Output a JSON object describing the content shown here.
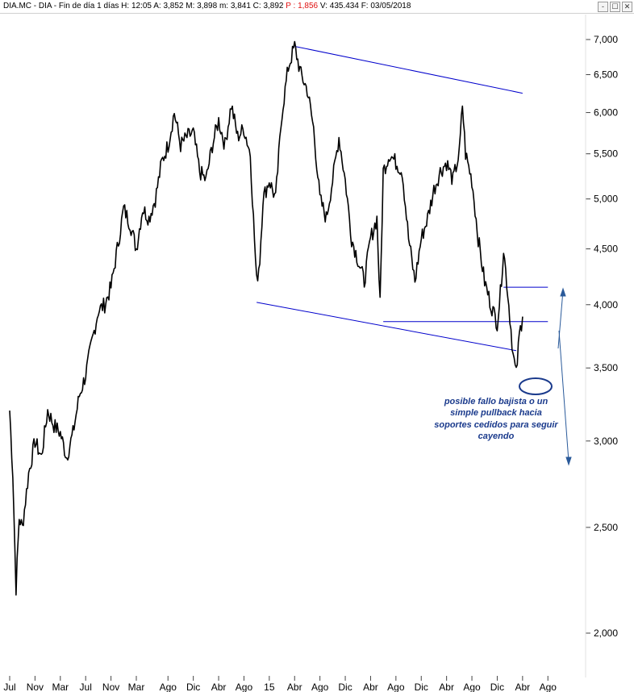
{
  "header": {
    "title_prefix": "DIA.MC - DIA - Fin de día 1 días",
    "h": "H: 12:05",
    "a": "A: 3,852",
    "m": "M: 3,898",
    "mm": "m: 3,841",
    "c": "C: 3,892",
    "p": "P : 1,856",
    "v": "V: 435.434",
    "f": "F: 03/05/2018",
    "controls": [
      "-",
      "☐",
      "✕"
    ]
  },
  "colors": {
    "price": "#000000",
    "trendline": "#0000cc",
    "annotation": "#1a3a8c",
    "arrow": "#2a5a9a",
    "highlight": "#e01010"
  },
  "chart_data": {
    "type": "line",
    "title": "",
    "scale": "log",
    "ylim": [
      1.9,
      7.3
    ],
    "y_ticks": [
      "7,000",
      "6,500",
      "6,000",
      "5,500",
      "5,000",
      "4,500",
      "4,000",
      "3,500",
      "3,000",
      "2,500",
      "2,000"
    ],
    "x_ticks": [
      "Jul",
      "Nov",
      "Mar",
      "Jul",
      "Nov",
      "Mar",
      "Ago",
      "Dic",
      "Abr",
      "Ago",
      "15",
      "Abr",
      "Ago",
      "Dic",
      "Abr",
      "Ago",
      "Dic",
      "Abr",
      "Ago",
      "Dic",
      "Abr",
      "Ago"
    ],
    "x_tick_index": [
      0,
      4,
      8,
      12,
      16,
      20,
      25,
      29,
      33,
      37,
      41,
      45,
      49,
      53,
      57,
      61,
      65,
      69,
      73,
      77,
      81,
      85
    ],
    "series": [
      {
        "values": [
          [
            0,
            3.2
          ],
          [
            0.5,
            2.8
          ],
          [
            1,
            2.2
          ],
          [
            1.5,
            2.55
          ],
          [
            2,
            2.5
          ],
          [
            3,
            2.8
          ],
          [
            4,
            3.0
          ],
          [
            5,
            2.9
          ],
          [
            6,
            3.2
          ],
          [
            7,
            3.1
          ],
          [
            8,
            3.05
          ],
          [
            9,
            2.9
          ],
          [
            10,
            3.05
          ],
          [
            11,
            3.3
          ],
          [
            12,
            3.45
          ],
          [
            13,
            3.7
          ],
          [
            14,
            3.95
          ],
          [
            15,
            4.0
          ],
          [
            16,
            4.15
          ],
          [
            17,
            4.5
          ],
          [
            18,
            4.9
          ],
          [
            19,
            4.75
          ],
          [
            20,
            4.5
          ],
          [
            21,
            4.9
          ],
          [
            22,
            4.8
          ],
          [
            23,
            5.0
          ],
          [
            24,
            5.4
          ],
          [
            25,
            5.6
          ],
          [
            26,
            6.0
          ],
          [
            27,
            5.6
          ],
          [
            28,
            5.7
          ],
          [
            29,
            5.75
          ],
          [
            30,
            5.3
          ],
          [
            31,
            5.2
          ],
          [
            32,
            5.6
          ],
          [
            33,
            5.9
          ],
          [
            34,
            5.6
          ],
          [
            35,
            6.1
          ],
          [
            36,
            5.7
          ],
          [
            37,
            5.8
          ],
          [
            38,
            5.5
          ],
          [
            38.5,
            4.8
          ],
          [
            39,
            4.2
          ],
          [
            39.5,
            4.4
          ],
          [
            40,
            5.0
          ],
          [
            41,
            5.2
          ],
          [
            42,
            5.0
          ],
          [
            43,
            6.0
          ],
          [
            44,
            6.6
          ],
          [
            45,
            6.9
          ],
          [
            46,
            6.5
          ],
          [
            47,
            6.3
          ],
          [
            48,
            5.8
          ],
          [
            49,
            5.0
          ],
          [
            50,
            4.8
          ],
          [
            51,
            5.2
          ],
          [
            52,
            5.7
          ],
          [
            53,
            5.2
          ],
          [
            54,
            4.6
          ],
          [
            55,
            4.4
          ],
          [
            56,
            4.2
          ],
          [
            57,
            4.6
          ],
          [
            58,
            4.8
          ],
          [
            58.5,
            4.0
          ],
          [
            59,
            5.3
          ],
          [
            60,
            5.5
          ],
          [
            61,
            5.4
          ],
          [
            62,
            5.3
          ],
          [
            63,
            4.6
          ],
          [
            64,
            4.2
          ],
          [
            65,
            4.6
          ],
          [
            66,
            4.8
          ],
          [
            67,
            5.1
          ],
          [
            68,
            5.3
          ],
          [
            69,
            5.4
          ],
          [
            70,
            5.2
          ],
          [
            71,
            5.5
          ],
          [
            71.5,
            6.1
          ],
          [
            72,
            5.5
          ],
          [
            73,
            5.2
          ],
          [
            74,
            4.6
          ],
          [
            75,
            4.2
          ],
          [
            76,
            4.0
          ],
          [
            77,
            3.85
          ],
          [
            77.5,
            4.1
          ],
          [
            78,
            4.5
          ],
          [
            78.5,
            4.2
          ],
          [
            79,
            3.9
          ],
          [
            79.5,
            3.6
          ],
          [
            80,
            3.45
          ],
          [
            80.5,
            3.75
          ],
          [
            81,
            3.9
          ]
        ]
      }
    ],
    "trendlines": [
      {
        "from": [
          45,
          6.9
        ],
        "to": [
          81,
          6.25
        ]
      },
      {
        "from": [
          39,
          4.02
        ],
        "to": [
          80,
          3.63
        ]
      },
      {
        "from": [
          59,
          3.86
        ],
        "to": [
          85,
          3.86
        ]
      },
      {
        "from": [
          78,
          4.15
        ],
        "to": [
          85,
          4.15
        ]
      }
    ],
    "annotation_text": [
      "posible fallo bajista o un",
      "simple pullback hacia",
      "soportes cedidos para seguir",
      "cayendo"
    ]
  }
}
